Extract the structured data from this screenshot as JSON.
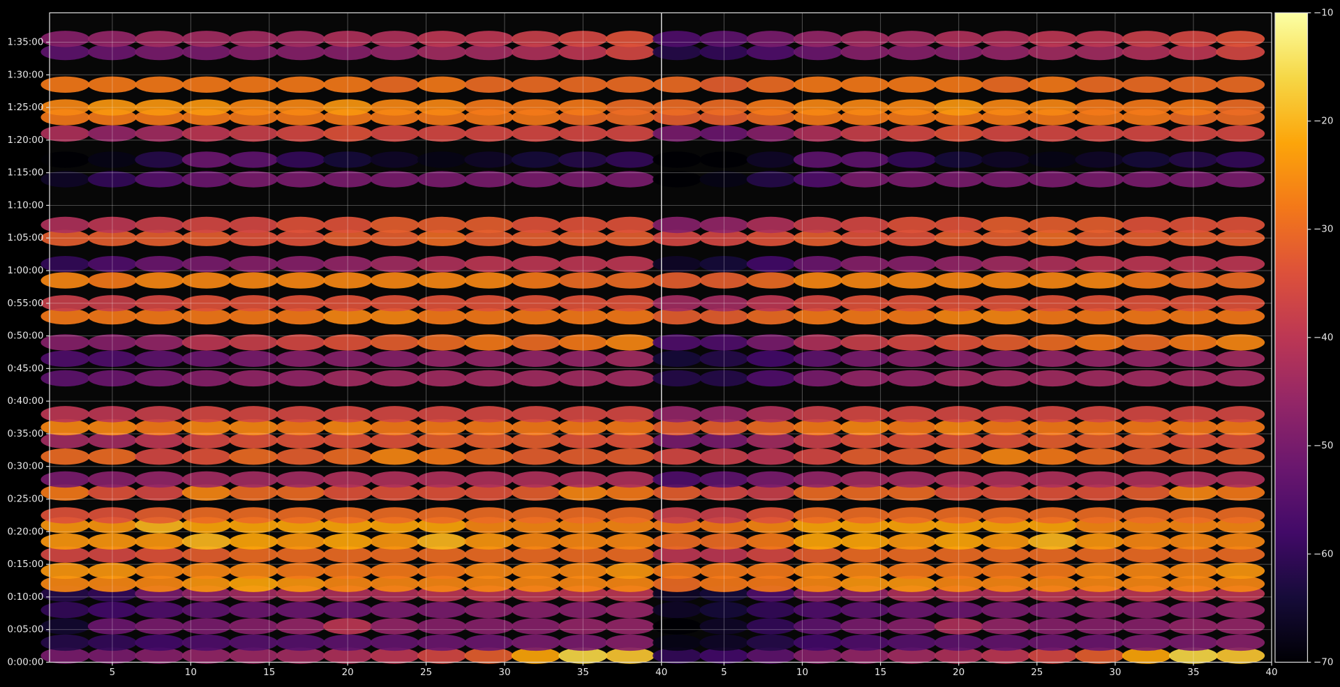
{
  "chart_data": {
    "type": "heatmap",
    "colormap": "inferno",
    "grid": true,
    "x": [
      2,
      5,
      8,
      11,
      14,
      17,
      20,
      23,
      26,
      29,
      32,
      35,
      38
    ],
    "y": [
      1,
      3,
      5.5,
      8,
      10.5,
      12,
      14,
      16.5,
      18.5,
      21,
      22.5,
      26,
      28,
      31.5,
      34,
      36,
      38,
      43.5,
      46.5,
      49,
      53,
      55,
      58.5,
      61,
      65,
      67,
      74,
      77,
      81,
      83.5,
      85,
      88.5,
      93.5,
      95.5
    ],
    "panels": [
      {
        "values": [
          [
            -50,
            -50,
            -48,
            -46,
            -45,
            -44,
            -42,
            -40,
            -36,
            -32,
            -22,
            -16,
            -18
          ],
          [
            -62,
            -60,
            -58,
            -56,
            -55,
            -55,
            -54,
            -53,
            -52,
            -52,
            -50,
            -50,
            -48
          ],
          [
            -65,
            -52,
            -50,
            -50,
            -48,
            -46,
            -40,
            -46,
            -48,
            -48,
            -48,
            -46,
            -46
          ],
          [
            -60,
            -58,
            -56,
            -54,
            -52,
            -52,
            -52,
            -50,
            -50,
            -48,
            -48,
            -48,
            -46
          ],
          [
            -62,
            -60,
            -50,
            -46,
            -44,
            -42,
            -42,
            -42,
            -40,
            -40,
            -40,
            -40,
            -40
          ],
          [
            -26,
            -26,
            -26,
            -24,
            -22,
            -24,
            -26,
            -26,
            -26,
            -26,
            -26,
            -26,
            -26
          ],
          [
            -24,
            -24,
            -26,
            -26,
            -26,
            -28,
            -28,
            -28,
            -28,
            -26,
            -26,
            -26,
            -24
          ],
          [
            -36,
            -36,
            -34,
            -32,
            -30,
            -30,
            -30,
            -30,
            -30,
            -30,
            -30,
            -30,
            -30
          ],
          [
            -24,
            -24,
            -24,
            -20,
            -22,
            -24,
            -22,
            -24,
            -20,
            -24,
            -26,
            -26,
            -26
          ],
          [
            -24,
            -24,
            -20,
            -22,
            -22,
            -22,
            -22,
            -22,
            -22,
            -26,
            -26,
            -26,
            -26
          ],
          [
            -34,
            -34,
            -32,
            -30,
            -30,
            -30,
            -30,
            -30,
            -30,
            -30,
            -30,
            -30,
            -30
          ],
          [
            -28,
            -34,
            -36,
            -26,
            -30,
            -30,
            -34,
            -34,
            -34,
            -34,
            -32,
            -26,
            -28
          ],
          [
            -50,
            -48,
            -46,
            -44,
            -44,
            -44,
            -42,
            -42,
            -42,
            -42,
            -42,
            -42,
            -42
          ],
          [
            -30,
            -30,
            -36,
            -34,
            -30,
            -32,
            -30,
            -26,
            -28,
            -30,
            -32,
            -32,
            -32
          ],
          [
            -44,
            -44,
            -40,
            -36,
            -34,
            -34,
            -34,
            -34,
            -32,
            -32,
            -32,
            -34,
            -34
          ],
          [
            -26,
            -26,
            -28,
            -26,
            -26,
            -28,
            -26,
            -28,
            -28,
            -28,
            -28,
            -28,
            -28
          ],
          [
            -40,
            -40,
            -38,
            -36,
            -36,
            -36,
            -36,
            -36,
            -36,
            -36,
            -36,
            -36,
            -36
          ],
          [
            -54,
            -52,
            -50,
            -48,
            -46,
            -46,
            -44,
            -44,
            -44,
            -44,
            -44,
            -44,
            -44
          ],
          [
            -56,
            -56,
            -54,
            -52,
            -50,
            -48,
            -48,
            -48,
            -46,
            -46,
            -46,
            -46,
            -44
          ],
          [
            -48,
            -48,
            -46,
            -40,
            -38,
            -36,
            -34,
            -32,
            -30,
            -28,
            -30,
            -28,
            -26
          ],
          [
            -28,
            -28,
            -28,
            -28,
            -28,
            -28,
            -26,
            -26,
            -28,
            -28,
            -28,
            -28,
            -28
          ],
          [
            -38,
            -38,
            -36,
            -34,
            -34,
            -34,
            -34,
            -34,
            -34,
            -34,
            -34,
            -34,
            -34
          ],
          [
            -26,
            -28,
            -26,
            -26,
            -26,
            -26,
            -26,
            -26,
            -26,
            -26,
            -28,
            -30,
            -30
          ],
          [
            -60,
            -56,
            -52,
            -50,
            -48,
            -48,
            -46,
            -44,
            -42,
            -40,
            -40,
            -40,
            -40
          ],
          [
            -32,
            -32,
            -32,
            -32,
            -34,
            -34,
            -32,
            -32,
            -30,
            -32,
            -32,
            -32,
            -32
          ],
          [
            -42,
            -40,
            -38,
            -36,
            -36,
            -34,
            -34,
            -32,
            -32,
            -32,
            -34,
            -34,
            -34
          ],
          [
            -66,
            -60,
            -55,
            -52,
            -50,
            -50,
            -50,
            -50,
            -50,
            -50,
            -50,
            -50,
            -50
          ],
          [
            -70,
            -68,
            -62,
            -52,
            -54,
            -60,
            -64,
            -66,
            -68,
            -66,
            -64,
            -62,
            -60
          ],
          [
            -42,
            -46,
            -44,
            -40,
            -38,
            -36,
            -34,
            -36,
            -36,
            -36,
            -36,
            -36,
            -36
          ],
          [
            -28,
            -28,
            -28,
            -28,
            -28,
            -28,
            -28,
            -28,
            -28,
            -28,
            -28,
            -30,
            -30
          ],
          [
            -26,
            -24,
            -24,
            -24,
            -26,
            -26,
            -24,
            -26,
            -26,
            -28,
            -28,
            -28,
            -30
          ],
          [
            -28,
            -28,
            -28,
            -28,
            -28,
            -28,
            -28,
            -30,
            -28,
            -30,
            -30,
            -30,
            -30
          ],
          [
            -54,
            -52,
            -50,
            -50,
            -48,
            -48,
            -48,
            -46,
            -44,
            -44,
            -42,
            -40,
            -36
          ],
          [
            -48,
            -46,
            -44,
            -44,
            -44,
            -44,
            -42,
            -42,
            -40,
            -40,
            -38,
            -36,
            -34
          ]
        ]
      },
      {
        "values": [
          [
            -60,
            -58,
            -54,
            -48,
            -46,
            -44,
            -42,
            -40,
            -36,
            -32,
            -22,
            -16,
            -18
          ],
          [
            -68,
            -66,
            -62,
            -58,
            -56,
            -55,
            -54,
            -53,
            -52,
            -52,
            -50,
            -50,
            -48
          ],
          [
            -70,
            -66,
            -60,
            -54,
            -50,
            -48,
            -42,
            -46,
            -48,
            -48,
            -48,
            -46,
            -46
          ],
          [
            -66,
            -64,
            -60,
            -56,
            -54,
            -52,
            -52,
            -50,
            -50,
            -48,
            -48,
            -48,
            -46
          ],
          [
            -66,
            -64,
            -56,
            -48,
            -46,
            -42,
            -42,
            -42,
            -40,
            -40,
            -40,
            -40,
            -40
          ],
          [
            -30,
            -28,
            -28,
            -26,
            -24,
            -24,
            -26,
            -26,
            -26,
            -26,
            -26,
            -26,
            -26
          ],
          [
            -28,
            -28,
            -28,
            -26,
            -26,
            -28,
            -28,
            -28,
            -28,
            -26,
            -26,
            -26,
            -24
          ],
          [
            -40,
            -40,
            -36,
            -32,
            -30,
            -30,
            -30,
            -30,
            -30,
            -30,
            -30,
            -30,
            -30
          ],
          [
            -30,
            -30,
            -28,
            -22,
            -22,
            -24,
            -22,
            -24,
            -20,
            -24,
            -26,
            -26,
            -26
          ],
          [
            -28,
            -28,
            -26,
            -22,
            -22,
            -22,
            -22,
            -22,
            -22,
            -26,
            -26,
            -26,
            -26
          ],
          [
            -38,
            -38,
            -34,
            -30,
            -30,
            -30,
            -30,
            -30,
            -30,
            -30,
            -30,
            -30,
            -30
          ],
          [
            -32,
            -36,
            -38,
            -30,
            -30,
            -30,
            -34,
            -34,
            -34,
            -34,
            -32,
            -26,
            -28
          ],
          [
            -56,
            -54,
            -50,
            -46,
            -44,
            -44,
            -42,
            -42,
            -42,
            -42,
            -42,
            -42,
            -42
          ],
          [
            -36,
            -38,
            -40,
            -36,
            -32,
            -32,
            -30,
            -26,
            -28,
            -30,
            -32,
            -32,
            -32
          ],
          [
            -50,
            -50,
            -44,
            -38,
            -34,
            -34,
            -34,
            -34,
            -32,
            -32,
            -32,
            -34,
            -34
          ],
          [
            -32,
            -32,
            -30,
            -28,
            -26,
            -28,
            -26,
            -28,
            -28,
            -28,
            -28,
            -28,
            -28
          ],
          [
            -46,
            -46,
            -42,
            -38,
            -36,
            -36,
            -36,
            -36,
            -36,
            -36,
            -36,
            -36,
            -36
          ],
          [
            -62,
            -62,
            -56,
            -50,
            -46,
            -46,
            -44,
            -44,
            -44,
            -44,
            -44,
            -44,
            -44
          ],
          [
            -64,
            -62,
            -58,
            -54,
            -50,
            -48,
            -48,
            -48,
            -46,
            -46,
            -46,
            -46,
            -44
          ],
          [
            -56,
            -56,
            -50,
            -42,
            -38,
            -36,
            -34,
            -32,
            -30,
            -28,
            -30,
            -28,
            -26
          ],
          [
            -32,
            -32,
            -30,
            -28,
            -28,
            -28,
            -26,
            -26,
            -28,
            -28,
            -28,
            -28,
            -28
          ],
          [
            -44,
            -44,
            -40,
            -36,
            -34,
            -34,
            -34,
            -34,
            -34,
            -34,
            -34,
            -34,
            -34
          ],
          [
            -32,
            -32,
            -30,
            -26,
            -26,
            -26,
            -26,
            -26,
            -26,
            -26,
            -28,
            -30,
            -30
          ],
          [
            -66,
            -64,
            -58,
            -52,
            -48,
            -48,
            -46,
            -44,
            -42,
            -40,
            -40,
            -40,
            -40
          ],
          [
            -36,
            -36,
            -34,
            -32,
            -34,
            -34,
            -32,
            -32,
            -30,
            -32,
            -32,
            -32,
            -32
          ],
          [
            -48,
            -46,
            -42,
            -38,
            -36,
            -34,
            -34,
            -32,
            -32,
            -32,
            -34,
            -34,
            -34
          ],
          [
            -70,
            -68,
            -62,
            -56,
            -50,
            -50,
            -50,
            -50,
            -50,
            -50,
            -50,
            -50,
            -50
          ],
          [
            -70,
            -70,
            -66,
            -54,
            -54,
            -60,
            -64,
            -66,
            -68,
            -66,
            -64,
            -62,
            -60
          ],
          [
            -50,
            -52,
            -48,
            -42,
            -38,
            -36,
            -34,
            -36,
            -36,
            -36,
            -36,
            -36,
            -36
          ],
          [
            -32,
            -32,
            -30,
            -28,
            -28,
            -28,
            -28,
            -28,
            -28,
            -28,
            -28,
            -30,
            -30
          ],
          [
            -30,
            -30,
            -28,
            -26,
            -26,
            -26,
            -24,
            -26,
            -26,
            -28,
            -28,
            -28,
            -30
          ],
          [
            -30,
            -32,
            -30,
            -28,
            -28,
            -28,
            -28,
            -30,
            -28,
            -30,
            -30,
            -30,
            -30
          ],
          [
            -62,
            -60,
            -56,
            -52,
            -48,
            -48,
            -48,
            -46,
            -44,
            -44,
            -42,
            -40,
            -36
          ],
          [
            -56,
            -54,
            -50,
            -46,
            -44,
            -44,
            -42,
            -42,
            -40,
            -40,
            -38,
            -36,
            -34
          ]
        ]
      }
    ],
    "xlim": [
      1,
      40
    ],
    "xticks": [
      5,
      10,
      15,
      20,
      25,
      30,
      35,
      40
    ],
    "ylim": [
      0,
      99.5
    ],
    "yticks": [
      {
        "value": 0,
        "label": "0:00:00"
      },
      {
        "value": 5,
        "label": "0:05:00"
      },
      {
        "value": 10,
        "label": "0:10:00"
      },
      {
        "value": 15,
        "label": "0:15:00"
      },
      {
        "value": 20,
        "label": "0:20:00"
      },
      {
        "value": 25,
        "label": "0:25:00"
      },
      {
        "value": 30,
        "label": "0:30:00"
      },
      {
        "value": 35,
        "label": "0:35:00"
      },
      {
        "value": 40,
        "label": "0:40:00"
      },
      {
        "value": 45,
        "label": "0:45:00"
      },
      {
        "value": 50,
        "label": "0:50:00"
      },
      {
        "value": 55,
        "label": "0:55:00"
      },
      {
        "value": 60,
        "label": "1:00:00"
      },
      {
        "value": 65,
        "label": "1:05:00"
      },
      {
        "value": 70,
        "label": "1:10:00"
      },
      {
        "value": 75,
        "label": "1:15:00"
      },
      {
        "value": 80,
        "label": "1:20:00"
      },
      {
        "value": 85,
        "label": "1:25:00"
      },
      {
        "value": 90,
        "label": "1:30:00"
      },
      {
        "value": 95,
        "label": "1:35:00"
      }
    ],
    "clim": [
      -70,
      -10
    ],
    "cticks": [
      {
        "value": -70,
        "label": "−70"
      },
      {
        "value": -60,
        "label": "−60"
      },
      {
        "value": -50,
        "label": "−50"
      },
      {
        "value": -40,
        "label": "−40"
      },
      {
        "value": -30,
        "label": "−30"
      },
      {
        "value": -20,
        "label": "−20"
      },
      {
        "value": -10,
        "label": "−10"
      }
    ]
  }
}
